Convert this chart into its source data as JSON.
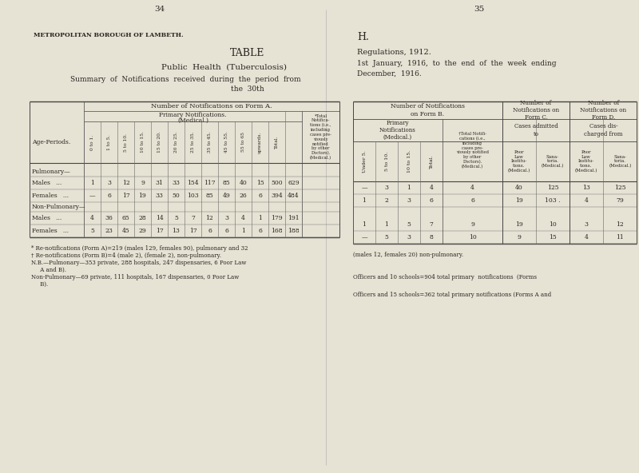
{
  "bg_color": "#e6e2d4",
  "text_color": "#2a2520",
  "page_num_left": "34",
  "page_num_right": "35",
  "left_header": "METROPOLITAN BOROUGH OF LAMBETH.",
  "left_title1": "TABLE",
  "left_title2": "Public Health (Tuberculosis)",
  "left_subtitle1": "Summary  of  Notifications  received  during  the  period  from",
  "left_subtitle2": "the  30th",
  "right_header1": "H.",
  "right_header2": "Regulations, 1912.",
  "right_subtitle1": "1st  January,  1916,  to  the  end  of  the  week  ending",
  "right_subtitle2": "December,  1916.",
  "left_col_headers": [
    "0 to 1.",
    "1 to 5.",
    "5 to 10.",
    "10 to 15.",
    "15 to 20.",
    "20 to 25.",
    "25 to 35.",
    "35 to 45.",
    "45 to 55.",
    "55 to 65",
    "upwards.",
    "Total."
  ],
  "left_last_col_header": "*Total\nNotifica-\ntions (i.e.,\nincluding\ncases pre-\nviously\nnotified\nby other\nDoctors).\n(Medical.)",
  "left_data": [
    [
      null,
      null,
      null,
      null,
      null,
      null,
      null,
      null,
      null,
      null,
      null,
      null,
      null
    ],
    [
      1,
      3,
      12,
      9,
      31,
      33,
      154,
      117,
      85,
      40,
      15,
      500,
      629
    ],
    [
      "—",
      6,
      17,
      19,
      33,
      50,
      103,
      85,
      49,
      26,
      6,
      394,
      484
    ],
    [
      null,
      null,
      null,
      null,
      null,
      null,
      null,
      null,
      null,
      null,
      null,
      null,
      null
    ],
    [
      4,
      36,
      65,
      28,
      14,
      5,
      7,
      12,
      3,
      4,
      1,
      179,
      191
    ],
    [
      5,
      23,
      45,
      29,
      17,
      13,
      17,
      6,
      6,
      1,
      6,
      168,
      188
    ]
  ],
  "left_row_labels": [
    "Pulmonary—",
    "Males",
    "Females",
    "Non-Pulmonary—",
    "Males",
    "Females"
  ],
  "left_row_is_cat": [
    true,
    false,
    false,
    true,
    false,
    false
  ],
  "right_data": [
    [
      "—",
      3,
      1,
      4,
      4,
      40,
      125,
      13,
      125
    ],
    [
      1,
      2,
      3,
      6,
      6,
      19,
      "103 .",
      4,
      79
    ],
    [
      1,
      1,
      5,
      7,
      9,
      19,
      10,
      3,
      12
    ],
    [
      "—",
      5,
      3,
      8,
      10,
      9,
      15,
      4,
      11
    ]
  ],
  "left_footnotes": [
    "* Re-notifications (Form A)=219 (males 129, females 90), pulmonary and 32",
    "† Re-notifications (Form B)=4 (male 2), (female 2), non-pulmonary.",
    "N.B.—Pulmonary—353 private, 288 hospitals, 247 dispensaries, 6 Poor Law",
    "     A and B).",
    "Non-Pulmonary—69 private, 111 hospitals, 167 dispensaries, 0 Poor Law",
    "     B)."
  ],
  "right_footnotes": [
    "(males 12, females 20) non-pulmonary.",
    "Officers and 10 schools=904 total primary  notifications  (Forms",
    "Officers and 15 schools=362 total primary notifications (Forms A and"
  ]
}
